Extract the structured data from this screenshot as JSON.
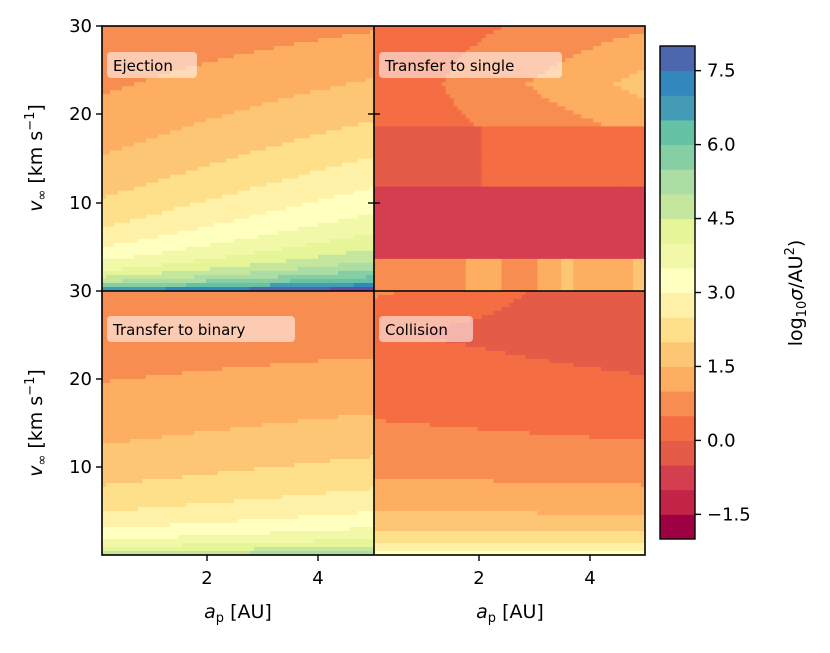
{
  "chart_data": {
    "type": "heatmap",
    "colormap": [
      "#9e0142",
      "#c32347",
      "#d53e4f",
      "#e45c48",
      "#f46d43",
      "#f88d52",
      "#fdae61",
      "#fdc675",
      "#fee08b",
      "#fff1a8",
      "#ffffbf",
      "#f1f9a9",
      "#e6f598",
      "#c4e69d",
      "#abdda4",
      "#86cfa5",
      "#66c2a5",
      "#439bb5",
      "#3288bd",
      "#4c67ae",
      "#5e4fa2"
    ],
    "colorbar": {
      "label": "log10(σ/AU²)",
      "label_main": "log",
      "label_sub": "10",
      "label_rest": "(σ/AU",
      "label_sup": "2",
      "label_close": ")",
      "range": [
        -2.0,
        8.0
      ],
      "step": 0.5,
      "ticks": [
        -1.5,
        0.0,
        1.5,
        3.0,
        4.5,
        6.0,
        7.5
      ],
      "tick_labels": [
        "−1.5",
        "0.0",
        "1.5",
        "3.0",
        "4.5",
        "6.0",
        "7.5"
      ]
    },
    "x_axis": {
      "label": "a_p [AU]",
      "label_main": "a",
      "label_sub": "p",
      "label_unit": " [AU]",
      "range": [
        0.0,
        5.0
      ],
      "ticks": [
        2,
        4
      ],
      "tick_labels": [
        "2",
        "4"
      ]
    },
    "y_axis": {
      "label": "v_∞ [km s^-1]",
      "label_main": "v",
      "label_sub": "∞",
      "label_unit": " [km s",
      "label_sup": "−1",
      "label_close": "]",
      "range": [
        0,
        30
      ],
      "ticks": [
        10,
        20,
        30
      ],
      "tick_labels": [
        "10",
        "20",
        "30"
      ]
    },
    "panels": [
      {
        "title": "Ejection",
        "levels_at_left": [
          3.0,
          2.5,
          2.0,
          1.5,
          1.0,
          0.5
        ],
        "levels_at_right": [
          5.5,
          4.5,
          3.5,
          3.0,
          2.5,
          2.0
        ]
      },
      {
        "title": "Transfer to single",
        "levels_at_left": [
          0.0,
          -0.5,
          -0.5,
          0.5,
          0.5,
          0.0
        ],
        "levels_at_right": [
          0.0,
          -0.5,
          -0.5,
          1.5,
          1.5,
          0.5
        ]
      },
      {
        "title": "Transfer to binary",
        "levels_at_left": [
          3.5,
          2.5,
          2.0,
          1.5,
          1.0,
          0.5
        ],
        "levels_at_right": [
          4.5,
          3.0,
          2.5,
          2.0,
          1.5,
          1.0
        ]
      },
      {
        "title": "Collision",
        "levels_at_left": [
          4.0,
          2.5,
          1.5,
          0.5,
          0.0,
          0.5
        ],
        "levels_at_right": [
          4.0,
          2.5,
          1.5,
          0.5,
          0.0,
          0.5
        ]
      }
    ]
  }
}
